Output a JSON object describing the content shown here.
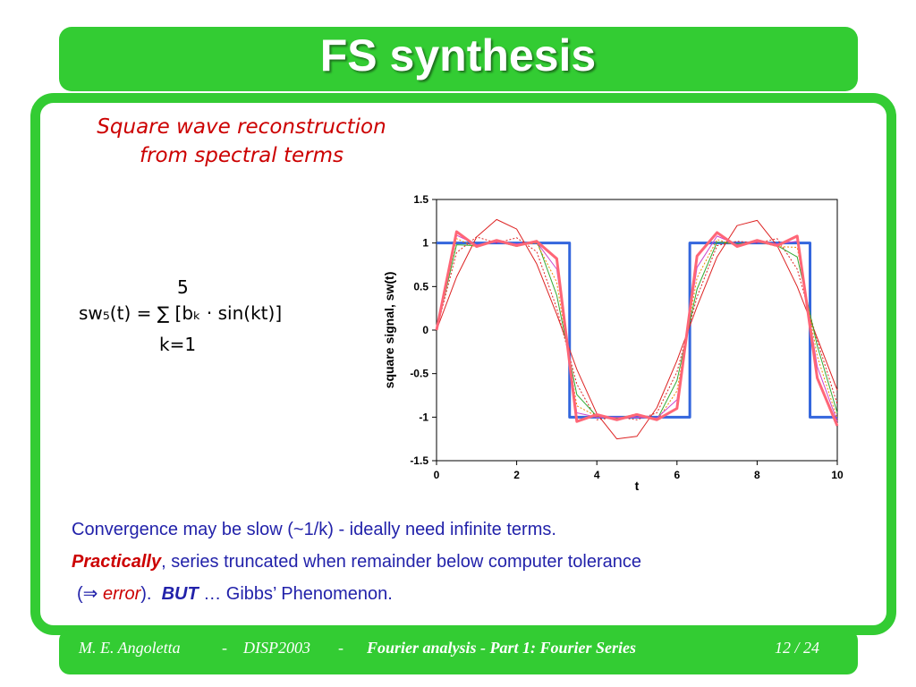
{
  "slide": {
    "title": "FS synthesis",
    "subtitle_line1": "Square wave reconstruction",
    "subtitle_line2": "from spectral terms"
  },
  "formula": {
    "upper_limit": "5",
    "expression": "sw₅(t) = ∑ [bₖ · sin(kt)]",
    "lower_limit": "k=1"
  },
  "body": {
    "line1": "Convergence may be slow (~1/k) - ideally need infinite terms.",
    "line2_emph": "Practically",
    "line2_rest": ", series truncated when remainder below computer tolerance",
    "line3_open": "(",
    "line3_arrow": "⇒",
    "line3_error": "error",
    "line3_close": ").",
    "line3_but": "BUT",
    "line3_rest": "… Gibbs’ Phenomenon."
  },
  "footer": {
    "author": "M. E. Angoletta",
    "separator": "-",
    "course": "DISP2003",
    "topic": "Fourier analysis - Part 1:  Fourier Series",
    "page": "12 / 24"
  },
  "colors": {
    "frame_green": "#33cc33",
    "title_text": "#ffffff",
    "subtitle_red": "#cc0000",
    "body_blue": "#2222aa",
    "square_wave": "#3366dd"
  },
  "chart_data": {
    "type": "line",
    "xlabel": "t",
    "ylabel": "square signal, sw(t)",
    "xlim": [
      0,
      10
    ],
    "ylim": [
      -1.5,
      1.5
    ],
    "xticks": [
      "0",
      "2",
      "4",
      "6",
      "8",
      "10"
    ],
    "yticks": [
      "1.5",
      "1",
      "0.5",
      "0",
      "-0.5",
      "-1",
      "-1.5"
    ],
    "grid": false,
    "legend": "none",
    "x": [
      0,
      0.5,
      1,
      1.5,
      2,
      2.5,
      3,
      3.5,
      4,
      4.5,
      5,
      5.5,
      6,
      6.5,
      7,
      7.5,
      8,
      8.5,
      9,
      9.5,
      10
    ],
    "series": [
      {
        "color": "#3366dd",
        "style": "solid",
        "width": 3,
        "values": [
          1,
          1,
          1,
          1,
          1,
          1,
          1,
          -1,
          -1,
          -1,
          -1,
          -1,
          -1,
          1,
          1,
          1,
          1,
          1,
          1,
          -1,
          -1
        ]
      },
      {
        "color": "#dd2222",
        "style": "solid",
        "width": 1,
        "values": [
          0,
          0.61,
          1.07,
          1.27,
          1.16,
          0.76,
          0.18,
          -0.45,
          -0.96,
          -1.25,
          -1.22,
          -0.89,
          -0.35,
          0.27,
          0.84,
          1.2,
          1.26,
          0.97,
          0.5,
          -0.09,
          -0.69
        ]
      },
      {
        "color": "#dd2222",
        "style": "dotted",
        "width": 1,
        "values": [
          0,
          0.89,
          1.07,
          1.0,
          1.06,
          0.9,
          0.25,
          -0.62,
          -1.03,
          -1.0,
          -1.03,
          -0.95,
          -0.48,
          0.38,
          0.97,
          1.02,
          1.0,
          1.05,
          0.7,
          -0.12,
          -0.85
        ]
      },
      {
        "color": "#33aa33",
        "style": "solid",
        "width": 1,
        "values": [
          0,
          0.98,
          0.97,
          1.02,
          0.96,
          1.03,
          0.4,
          -0.74,
          -0.99,
          -1.01,
          -0.97,
          -1.03,
          -0.58,
          0.47,
          1.01,
          0.99,
          1.01,
          0.97,
          0.84,
          -0.18,
          -0.95
        ]
      },
      {
        "color": "#ee8800",
        "style": "dotted",
        "width": 1,
        "values": [
          0,
          1.05,
          0.95,
          1.03,
          0.97,
          1.0,
          0.55,
          -0.87,
          -0.99,
          -1.02,
          -0.96,
          -1.04,
          -0.7,
          0.6,
          1.04,
          0.97,
          1.02,
          0.96,
          0.95,
          -0.3,
          -1.02
        ]
      },
      {
        "color": "#cc44cc",
        "style": "solid",
        "width": 1,
        "values": [
          0,
          1.09,
          0.98,
          1.01,
          0.99,
          1.01,
          0.7,
          -0.95,
          -1.0,
          -1.0,
          -1.0,
          -1.01,
          -0.8,
          0.72,
          1.08,
          0.98,
          1.01,
          0.99,
          1.02,
          -0.42,
          -1.05
        ]
      },
      {
        "color": "#ff6677",
        "style": "solid",
        "width": 3,
        "values": [
          0,
          1.13,
          0.96,
          1.03,
          0.97,
          1.02,
          0.82,
          -1.05,
          -0.97,
          -1.03,
          -0.97,
          -1.03,
          -0.9,
          0.85,
          1.12,
          0.96,
          1.03,
          0.97,
          1.08,
          -0.55,
          -1.1
        ]
      }
    ]
  }
}
